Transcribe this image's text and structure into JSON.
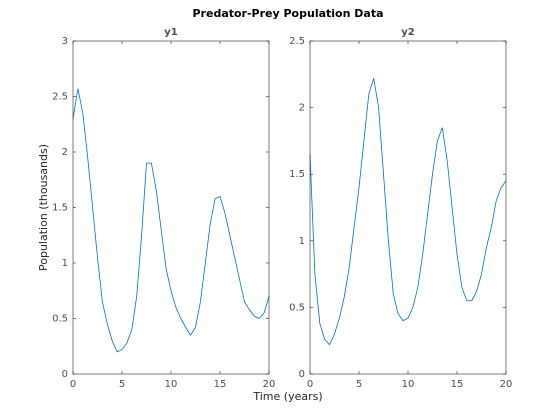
{
  "title": "Predator-Prey Population Data",
  "xlabel": "Time (years)",
  "chart_data": [
    {
      "type": "line",
      "title": "y1",
      "ylabel": "Population (thousands)",
      "x": [
        0,
        0.5,
        1,
        1.5,
        2,
        2.5,
        3,
        3.5,
        4,
        4.5,
        5,
        5.5,
        6,
        6.5,
        7,
        7.5,
        8,
        8.5,
        9,
        9.5,
        10,
        10.5,
        11,
        11.5,
        12,
        12.5,
        13,
        13.5,
        14,
        14.5,
        15,
        15.5,
        16,
        16.5,
        17,
        17.5,
        18,
        18.5,
        19,
        19.5,
        20
      ],
      "series": [
        {
          "color": "#0072bd",
          "values": [
            2.3,
            2.57,
            2.35,
            1.95,
            1.5,
            1.05,
            0.65,
            0.45,
            0.3,
            0.2,
            0.22,
            0.28,
            0.4,
            0.7,
            1.25,
            1.9,
            1.9,
            1.65,
            1.3,
            0.95,
            0.75,
            0.6,
            0.5,
            0.42,
            0.35,
            0.42,
            0.65,
            1.0,
            1.35,
            1.58,
            1.6,
            1.45,
            1.25,
            1.05,
            0.85,
            0.65,
            0.58,
            0.52,
            0.5,
            0.55,
            0.7
          ]
        }
      ],
      "xlim": [
        0,
        20
      ],
      "xticks": [
        0,
        5,
        10,
        15,
        20
      ],
      "ylim": [
        0,
        3
      ],
      "yticks": [
        0,
        0.5,
        1,
        1.5,
        2,
        2.5,
        3
      ]
    },
    {
      "type": "line",
      "title": "y2",
      "x": [
        0,
        0.5,
        1,
        1.5,
        2,
        2.5,
        3,
        3.5,
        4,
        4.5,
        5,
        5.5,
        6,
        6.5,
        7,
        7.5,
        8,
        8.5,
        9,
        9.5,
        10,
        10.5,
        11,
        11.5,
        12,
        12.5,
        13,
        13.5,
        14,
        14.5,
        15,
        15.5,
        16,
        16.5,
        17,
        17.5,
        18,
        18.5,
        19,
        19.5,
        20
      ],
      "series": [
        {
          "color": "#0072bd",
          "values": [
            1.65,
            0.75,
            0.38,
            0.26,
            0.22,
            0.3,
            0.42,
            0.58,
            0.8,
            1.1,
            1.4,
            1.75,
            2.1,
            2.22,
            2.0,
            1.5,
            1.0,
            0.6,
            0.45,
            0.4,
            0.42,
            0.5,
            0.65,
            0.9,
            1.2,
            1.5,
            1.75,
            1.85,
            1.6,
            1.25,
            0.9,
            0.65,
            0.55,
            0.55,
            0.62,
            0.75,
            0.95,
            1.1,
            1.3,
            1.4,
            1.45
          ]
        }
      ],
      "xlim": [
        0,
        20
      ],
      "xticks": [
        0,
        5,
        10,
        15,
        20
      ],
      "ylim": [
        0,
        2.5
      ],
      "yticks": [
        0,
        0.5,
        1,
        1.5,
        2,
        2.5
      ]
    }
  ]
}
